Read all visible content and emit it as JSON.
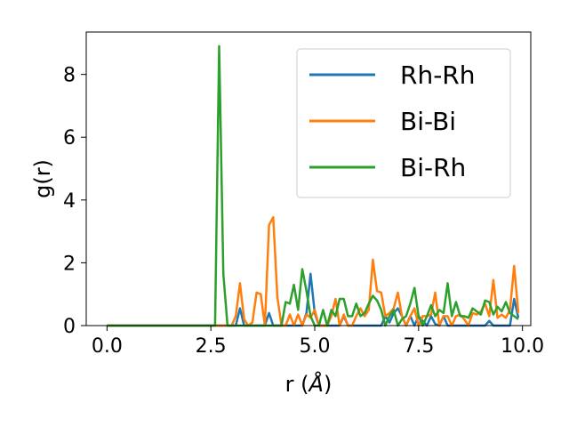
{
  "chart_data": {
    "type": "line",
    "xlabel": "r (",
    "xlabel_unit": "Å",
    "xlabel_close": ")",
    "ylabel": "g(r)",
    "xlim": [
      -0.5,
      10.2
    ],
    "ylim": [
      0,
      9.35
    ],
    "xticks": [
      0.0,
      2.5,
      5.0,
      7.5,
      10.0
    ],
    "xtick_labels": [
      "0.0",
      "2.5",
      "5.0",
      "7.5",
      "10.0"
    ],
    "yticks": [
      0,
      2,
      4,
      6,
      8
    ],
    "ytick_labels": [
      "0",
      "2",
      "4",
      "6",
      "8"
    ],
    "grid": false,
    "legend_position": "top-right",
    "series": [
      {
        "name": "Rh-Rh",
        "color": "#1f77b4",
        "x": [
          0.0,
          2.7,
          3.1,
          3.2,
          3.3,
          3.8,
          3.9,
          4.0,
          4.7,
          4.8,
          4.9,
          5.0,
          5.1,
          5.6,
          5.7,
          5.8,
          6.6,
          6.7,
          6.8,
          6.9,
          7.0,
          7.1,
          7.2,
          7.3,
          7.4,
          7.5,
          7.6,
          7.7,
          7.8,
          7.9,
          8.0,
          8.1,
          8.2,
          9.1,
          9.2,
          9.3,
          9.7,
          9.8,
          9.9
        ],
        "y": [
          0.0,
          0.0,
          0.0,
          0.55,
          0.0,
          0.0,
          0.4,
          0.0,
          0.0,
          0.4,
          1.65,
          0.4,
          0.0,
          0.0,
          0.3,
          0.0,
          0.0,
          0.3,
          0.1,
          0.4,
          0.55,
          0.3,
          0.0,
          0.3,
          0.0,
          0.3,
          0.15,
          0.0,
          0.3,
          0.05,
          0.0,
          0.3,
          0.0,
          0.0,
          0.15,
          0.0,
          0.0,
          0.85,
          0.25
        ]
      },
      {
        "name": "Bi-Bi",
        "color": "#ff7f0e",
        "x": [
          0.0,
          2.8,
          3.0,
          3.1,
          3.2,
          3.3,
          3.4,
          3.5,
          3.6,
          3.7,
          3.8,
          3.9,
          4.0,
          4.1,
          4.2,
          4.3,
          4.4,
          4.5,
          4.6,
          4.7,
          4.8,
          4.9,
          5.0,
          5.1,
          5.2,
          5.3,
          5.4,
          5.5,
          5.6,
          5.7,
          5.8,
          5.9,
          6.0,
          6.1,
          6.2,
          6.3,
          6.4,
          6.5,
          6.6,
          6.7,
          6.8,
          6.9,
          7.0,
          7.1,
          7.2,
          7.3,
          7.4,
          7.5,
          7.6,
          7.7,
          7.8,
          7.9,
          8.0,
          8.1,
          8.2,
          8.3,
          8.4,
          8.5,
          8.6,
          8.7,
          8.8,
          8.9,
          9.0,
          9.1,
          9.2,
          9.3,
          9.4,
          9.5,
          9.6,
          9.7,
          9.8,
          9.9
        ],
        "y": [
          0.0,
          0.0,
          0.0,
          0.3,
          1.35,
          0.2,
          0.0,
          0.1,
          1.05,
          1.0,
          0.0,
          3.2,
          3.45,
          0.9,
          0.0,
          0.0,
          0.35,
          0.0,
          0.35,
          0.0,
          0.35,
          0.25,
          0.5,
          0.0,
          0.0,
          0.0,
          0.3,
          0.85,
          0.0,
          0.35,
          0.0,
          0.0,
          0.3,
          0.55,
          0.3,
          0.5,
          2.1,
          1.1,
          1.05,
          0.3,
          0.4,
          0.55,
          1.05,
          0.3,
          0.0,
          0.3,
          0.55,
          0.0,
          0.3,
          0.3,
          0.35,
          1.05,
          0.0,
          0.3,
          0.3,
          0.0,
          0.3,
          0.35,
          0.2,
          0.0,
          0.4,
          0.35,
          0.45,
          0.7,
          0.3,
          1.45,
          0.25,
          0.35,
          0.25,
          0.5,
          1.9,
          0.4
        ]
      },
      {
        "name": "Bi-Rh",
        "color": "#2ca02c",
        "x": [
          0.0,
          2.6,
          2.7,
          2.8,
          2.9,
          3.0,
          3.1,
          3.2,
          3.3,
          3.4,
          3.5,
          3.6,
          3.7,
          3.8,
          3.9,
          4.0,
          4.1,
          4.2,
          4.3,
          4.4,
          4.5,
          4.6,
          4.7,
          4.8,
          4.9,
          5.0,
          5.1,
          5.2,
          5.3,
          5.4,
          5.5,
          5.6,
          5.7,
          5.8,
          5.9,
          6.0,
          6.1,
          6.2,
          6.3,
          6.4,
          6.5,
          6.6,
          6.7,
          6.8,
          6.9,
          7.0,
          7.1,
          7.2,
          7.3,
          7.4,
          7.5,
          7.6,
          7.7,
          7.8,
          7.9,
          8.0,
          8.1,
          8.2,
          8.3,
          8.4,
          8.5,
          8.6,
          8.7,
          8.8,
          8.9,
          9.0,
          9.1,
          9.2,
          9.3,
          9.4,
          9.5,
          9.6,
          9.7,
          9.8,
          9.9
        ],
        "y": [
          0.0,
          0.0,
          8.9,
          1.65,
          0.0,
          0.0,
          0.0,
          0.0,
          0.0,
          0.0,
          0.0,
          0.0,
          0.0,
          0.0,
          0.0,
          0.0,
          0.0,
          0.0,
          0.75,
          0.7,
          1.3,
          0.5,
          1.8,
          1.1,
          0.3,
          0.0,
          0.0,
          0.5,
          0.0,
          0.5,
          0.3,
          0.85,
          0.85,
          0.3,
          0.3,
          0.7,
          0.3,
          0.4,
          0.7,
          0.95,
          0.8,
          0.5,
          0.0,
          0.3,
          0.5,
          0.0,
          0.2,
          0.3,
          0.7,
          1.2,
          0.3,
          0.0,
          0.3,
          0.65,
          0.3,
          0.5,
          0.4,
          1.35,
          0.3,
          0.75,
          0.3,
          0.3,
          0.25,
          0.55,
          0.45,
          0.35,
          0.8,
          0.75,
          0.35,
          0.6,
          0.45,
          0.75,
          0.4,
          0.3,
          0.2
        ]
      }
    ]
  }
}
